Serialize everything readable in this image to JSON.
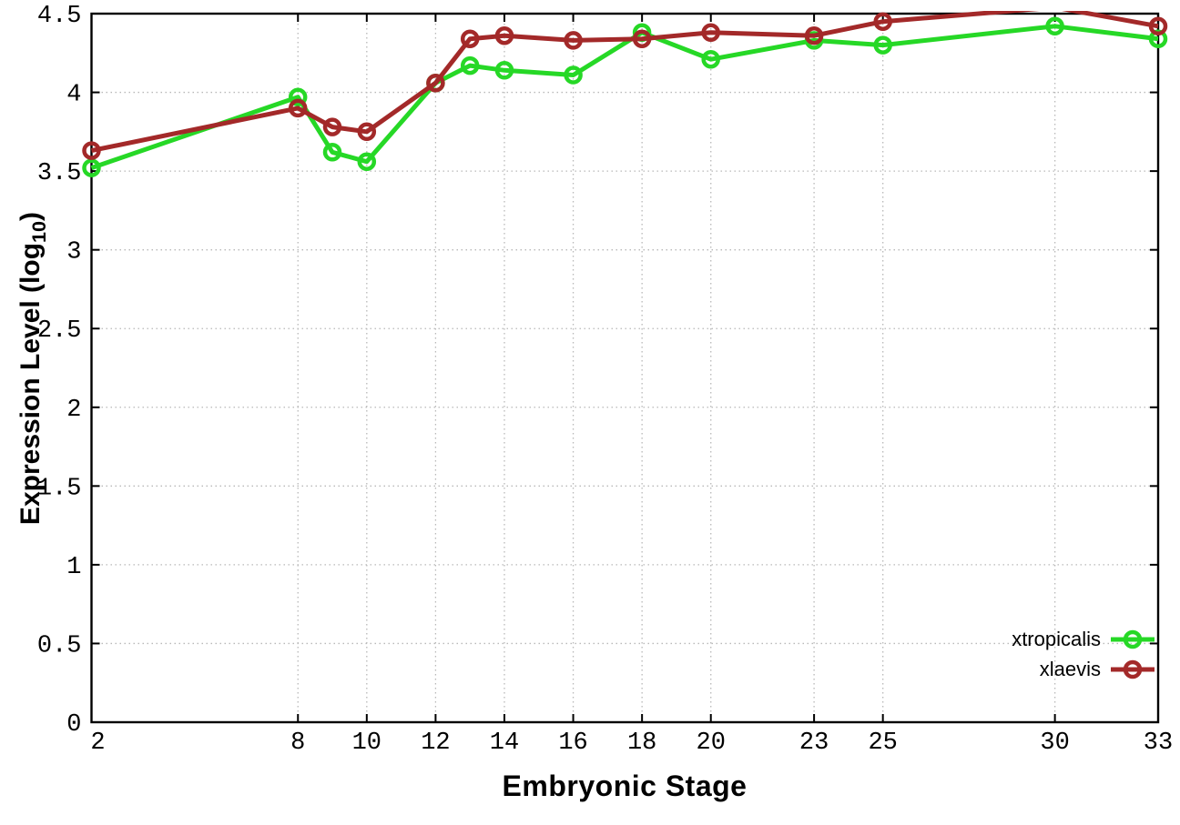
{
  "chart_data": {
    "type": "line",
    "title": "",
    "xlabel": "Embryonic Stage",
    "ylabel": {
      "prefix": "Expression Level (log",
      "subscript": "10",
      "suffix": ")"
    },
    "x": [
      2,
      8,
      9,
      10,
      12,
      13,
      14,
      16,
      18,
      20,
      23,
      25,
      30,
      33
    ],
    "series": [
      {
        "name": "xtropicalis",
        "color": "#26d826",
        "values": [
          3.52,
          3.97,
          3.62,
          3.56,
          4.06,
          4.17,
          4.14,
          4.11,
          4.38,
          4.21,
          4.33,
          4.3,
          4.42,
          4.34
        ]
      },
      {
        "name": "xlaevis",
        "color": "#a32929",
        "values": [
          3.63,
          3.9,
          3.78,
          3.75,
          4.06,
          4.34,
          4.36,
          4.33,
          4.34,
          4.38,
          4.36,
          4.45,
          4.54,
          4.42
        ]
      }
    ],
    "xlim": [
      2,
      33
    ],
    "ylim": [
      0,
      4.5
    ],
    "xtick_values": [
      2,
      8,
      10,
      12,
      14,
      16,
      18,
      20,
      23,
      25,
      30,
      33
    ],
    "xtick_labels": [
      "2",
      "8",
      "10",
      "12",
      "14",
      "16",
      "18",
      "20",
      "23",
      "25",
      "30",
      "33"
    ],
    "ytick_values": [
      0,
      0.5,
      1,
      1.5,
      2,
      2.5,
      3,
      3.5,
      4,
      4.5
    ],
    "ytick_labels": [
      "0",
      "0.5",
      "1",
      "1.5",
      "2",
      "2.5",
      "3",
      "3.5",
      "4",
      "4.5"
    ],
    "grid": true,
    "legend_position": "bottom-right",
    "axis_color": "#000000",
    "grid_color": "#b8b8b8",
    "background": "#ffffff",
    "marker": "open-circle"
  }
}
